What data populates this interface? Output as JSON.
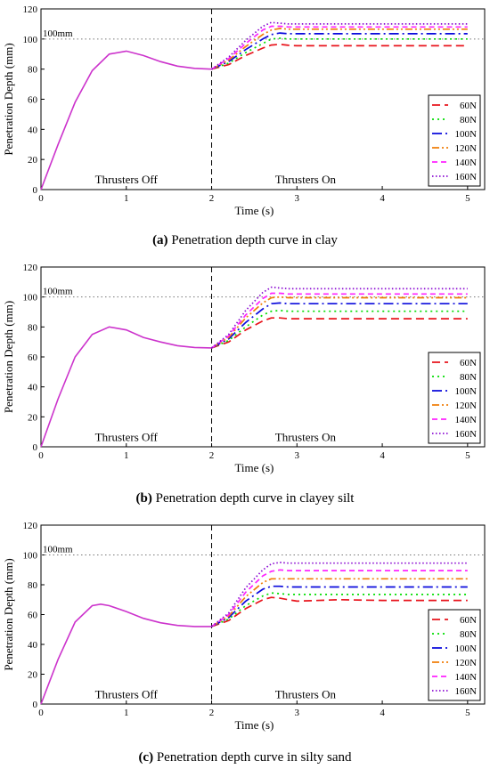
{
  "colors": {
    "60N": "#e8141c",
    "80N": "#00dd00",
    "100N": "#0a0adc",
    "120N": "#f07e0a",
    "140N": "#ff22ff",
    "160N": "#8a0ad2",
    "shared": "#cc33cc",
    "axis": "#000000",
    "reference": "#777777"
  },
  "chart_data": [
    {
      "type": "line",
      "caption_tag": "(a)",
      "caption_text": " Penetration depth curve in clay",
      "xlabel": "Time (s)",
      "ylabel": "Penetration Depth (mm)",
      "xlim": [
        0,
        5.2
      ],
      "ylim": [
        0,
        120
      ],
      "xticks": [
        0,
        1,
        2,
        3,
        4,
        5
      ],
      "yticks": [
        0,
        20,
        40,
        60,
        80,
        100,
        120
      ],
      "grid": false,
      "legend_position": "right",
      "reference_line": {
        "y": 100,
        "label": "100mm"
      },
      "vertical_marker": {
        "x": 2
      },
      "annotations": [
        {
          "text": "Thrusters Off",
          "x": 1.0,
          "y": 4
        },
        {
          "text": "Thrusters On",
          "x": 3.1,
          "y": 4
        }
      ],
      "shared_phase": {
        "x": [
          0,
          0.2,
          0.4,
          0.6,
          0.8,
          1.0,
          1.2,
          1.4,
          1.6,
          1.8,
          2.0
        ],
        "y": [
          0,
          30,
          58,
          79,
          90,
          92,
          89,
          85,
          82,
          80.5,
          80
        ]
      },
      "series": [
        {
          "name": "60N",
          "x": [
            2.0,
            2.2,
            2.4,
            2.6,
            2.7,
            2.8,
            2.9,
            3.0,
            3.5,
            4.0,
            4.5,
            5.0
          ],
          "y": [
            80,
            83,
            89,
            94,
            96,
            96.5,
            95.8,
            95.5,
            95.5,
            95.5,
            95.5,
            95.5
          ]
        },
        {
          "name": "80N",
          "x": [
            2.0,
            2.2,
            2.4,
            2.6,
            2.7,
            2.8,
            2.9,
            3.0,
            3.5,
            4.0,
            4.5,
            5.0
          ],
          "y": [
            80,
            84,
            91,
            97,
            100,
            100.5,
            100,
            100,
            100,
            100,
            100,
            100
          ]
        },
        {
          "name": "100N",
          "x": [
            2.0,
            2.2,
            2.4,
            2.6,
            2.7,
            2.8,
            2.9,
            3.0,
            3.5,
            4.0,
            4.5,
            5.0
          ],
          "y": [
            80,
            85,
            93,
            100,
            103,
            104,
            103.5,
            103.5,
            103.5,
            103.5,
            103.5,
            103.5
          ]
        },
        {
          "name": "120N",
          "x": [
            2.0,
            2.2,
            2.4,
            2.6,
            2.7,
            2.8,
            2.9,
            3.0,
            3.5,
            4.0,
            4.5,
            5.0
          ],
          "y": [
            80,
            86,
            95,
            103,
            106,
            107,
            106.5,
            106.5,
            106.5,
            106.5,
            106.5,
            106.5
          ]
        },
        {
          "name": "140N",
          "x": [
            2.0,
            2.2,
            2.4,
            2.6,
            2.7,
            2.8,
            2.9,
            3.0,
            3.5,
            4.0,
            4.5,
            5.0
          ],
          "y": [
            80,
            87,
            97,
            106,
            108.5,
            108.5,
            108,
            108,
            108,
            108,
            108,
            108
          ]
        },
        {
          "name": "160N",
          "x": [
            2.0,
            2.2,
            2.4,
            2.6,
            2.7,
            2.8,
            2.9,
            3.0,
            3.5,
            4.0,
            4.5,
            5.0
          ],
          "y": [
            80,
            88,
            99,
            108.5,
            111,
            110.5,
            110,
            110,
            110,
            110,
            110,
            110
          ]
        }
      ]
    },
    {
      "type": "line",
      "caption_tag": "(b)",
      "caption_text": " Penetration depth curve in clayey silt",
      "xlabel": "Time (s)",
      "ylabel": "Penetration Depth (mm)",
      "xlim": [
        0,
        5.2
      ],
      "ylim": [
        0,
        120
      ],
      "xticks": [
        0,
        1,
        2,
        3,
        4,
        5
      ],
      "yticks": [
        0,
        20,
        40,
        60,
        80,
        100,
        120
      ],
      "grid": false,
      "legend_position": "right",
      "reference_line": {
        "y": 100,
        "label": "100mm"
      },
      "vertical_marker": {
        "x": 2
      },
      "annotations": [
        {
          "text": "Thrusters Off",
          "x": 1.0,
          "y": 4
        },
        {
          "text": "Thrusters On",
          "x": 3.1,
          "y": 4
        }
      ],
      "shared_phase": {
        "x": [
          0,
          0.2,
          0.4,
          0.6,
          0.8,
          1.0,
          1.2,
          1.4,
          1.6,
          1.8,
          2.0
        ],
        "y": [
          0,
          32,
          60,
          75,
          80,
          78,
          73,
          70,
          67.5,
          66.3,
          66
        ]
      },
      "series": [
        {
          "name": "60N",
          "x": [
            2.0,
            2.2,
            2.4,
            2.6,
            2.7,
            2.8,
            2.9,
            3.0,
            3.5,
            4.0,
            4.5,
            5.0
          ],
          "y": [
            66,
            70,
            78,
            84,
            86,
            86,
            85.5,
            85.5,
            85.5,
            85.5,
            85.5,
            85.5
          ]
        },
        {
          "name": "80N",
          "x": [
            2.0,
            2.2,
            2.4,
            2.6,
            2.7,
            2.8,
            2.9,
            3.0,
            3.5,
            4.0,
            4.5,
            5.0
          ],
          "y": [
            66,
            71,
            80,
            88,
            90.5,
            91,
            90.5,
            90.5,
            90.5,
            90.5,
            90.5,
            90.5
          ]
        },
        {
          "name": "100N",
          "x": [
            2.0,
            2.2,
            2.4,
            2.6,
            2.7,
            2.8,
            2.9,
            3.0,
            3.5,
            4.0,
            4.5,
            5.0
          ],
          "y": [
            66,
            72,
            83,
            92,
            95.5,
            96,
            95.5,
            95.5,
            95.5,
            95.5,
            95.5,
            95.5
          ]
        },
        {
          "name": "120N",
          "x": [
            2.0,
            2.2,
            2.4,
            2.6,
            2.7,
            2.8,
            2.9,
            3.0,
            3.5,
            4.0,
            4.5,
            5.0
          ],
          "y": [
            66,
            73,
            86,
            96,
            99.5,
            100,
            99.5,
            99.5,
            99.5,
            99.5,
            99.5,
            99.5
          ]
        },
        {
          "name": "140N",
          "x": [
            2.0,
            2.2,
            2.4,
            2.6,
            2.7,
            2.8,
            2.9,
            3.0,
            3.5,
            4.0,
            4.5,
            5.0
          ],
          "y": [
            66,
            74,
            88,
            99,
            102.5,
            102.5,
            102,
            102,
            102,
            102,
            102,
            102
          ]
        },
        {
          "name": "160N",
          "x": [
            2.0,
            2.2,
            2.4,
            2.6,
            2.7,
            2.8,
            2.9,
            3.0,
            3.5,
            4.0,
            4.5,
            5.0
          ],
          "y": [
            66,
            75,
            91,
            103,
            106.5,
            106,
            105.5,
            105.5,
            105.5,
            105.5,
            105.5,
            105.5
          ]
        }
      ]
    },
    {
      "type": "line",
      "caption_tag": "(c)",
      "caption_text": " Penetration depth curve in silty sand",
      "xlabel": "Time (s)",
      "ylabel": "Penetration Depth (mm)",
      "xlim": [
        0,
        5.2
      ],
      "ylim": [
        0,
        120
      ],
      "xticks": [
        0,
        1,
        2,
        3,
        4,
        5
      ],
      "yticks": [
        0,
        20,
        40,
        60,
        80,
        100,
        120
      ],
      "grid": false,
      "legend_position": "right",
      "reference_line": {
        "y": 100,
        "label": "100mm"
      },
      "vertical_marker": {
        "x": 2
      },
      "annotations": [
        {
          "text": "Thrusters Off",
          "x": 1.0,
          "y": 4
        },
        {
          "text": "Thrusters On",
          "x": 3.1,
          "y": 4
        }
      ],
      "shared_phase": {
        "x": [
          0,
          0.2,
          0.4,
          0.6,
          0.7,
          0.8,
          1.0,
          1.2,
          1.4,
          1.6,
          1.8,
          2.0
        ],
        "y": [
          0,
          30,
          55,
          66,
          67,
          66,
          62,
          57.5,
          54.5,
          52.7,
          52,
          52
        ]
      },
      "series": [
        {
          "name": "60N",
          "x": [
            2.0,
            2.2,
            2.4,
            2.6,
            2.7,
            2.8,
            2.9,
            3.0,
            3.5,
            4.0,
            4.5,
            5.0
          ],
          "y": [
            52,
            56,
            64,
            70,
            71.5,
            71,
            70,
            69,
            70,
            69.5,
            69.5,
            69.5
          ]
        },
        {
          "name": "80N",
          "x": [
            2.0,
            2.2,
            2.4,
            2.6,
            2.7,
            2.8,
            2.9,
            3.0,
            3.5,
            4.0,
            4.5,
            5.0
          ],
          "y": [
            52,
            57,
            66,
            72.5,
            74.5,
            74,
            73.5,
            73.5,
            73.5,
            73.5,
            73.5,
            73.5
          ]
        },
        {
          "name": "100N",
          "x": [
            2.0,
            2.2,
            2.4,
            2.6,
            2.7,
            2.8,
            2.9,
            3.0,
            3.5,
            4.0,
            4.5,
            5.0
          ],
          "y": [
            52,
            58,
            69,
            77,
            79,
            79,
            78.5,
            78.5,
            78.5,
            78.5,
            78.5,
            78.5
          ]
        },
        {
          "name": "120N",
          "x": [
            2.0,
            2.2,
            2.4,
            2.6,
            2.7,
            2.8,
            2.9,
            3.0,
            3.5,
            4.0,
            4.5,
            5.0
          ],
          "y": [
            52,
            59,
            72,
            81.5,
            84,
            84,
            84,
            84,
            84,
            84,
            84,
            84
          ]
        },
        {
          "name": "140N",
          "x": [
            2.0,
            2.2,
            2.4,
            2.6,
            2.7,
            2.8,
            2.9,
            3.0,
            3.5,
            4.0,
            4.5,
            5.0
          ],
          "y": [
            52,
            60,
            75,
            86,
            89,
            90,
            89.5,
            89.5,
            89.5,
            89.5,
            89.5,
            89.5
          ]
        },
        {
          "name": "160N",
          "x": [
            2.0,
            2.2,
            2.4,
            2.6,
            2.7,
            2.8,
            2.9,
            3.0,
            3.5,
            4.0,
            4.5,
            5.0
          ],
          "y": [
            52,
            61,
            78,
            90,
            94,
            95,
            94.5,
            94.5,
            94.5,
            94.5,
            94.5,
            94.5
          ]
        }
      ]
    }
  ]
}
